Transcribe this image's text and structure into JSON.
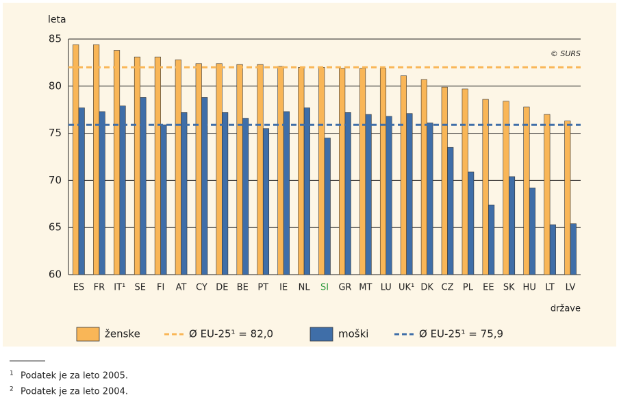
{
  "chart_data": {
    "type": "bar",
    "y_axis_label": "leta",
    "x_axis_label": "države",
    "annotation": "© SURS",
    "categories": [
      "ES",
      "FR",
      "IT¹",
      "SE",
      "FI",
      "AT",
      "CY",
      "DE",
      "BE",
      "PT",
      "IE",
      "NL",
      "SI",
      "GR",
      "MT",
      "LU",
      "UK¹",
      "DK",
      "CZ",
      "PL",
      "EE",
      "SK",
      "HU",
      "LT",
      "LV"
    ],
    "highlight": {
      "index": 12,
      "color": "#2e9a3e"
    },
    "series": [
      {
        "name": "ženske",
        "color": "#f9b657",
        "values": [
          84.4,
          84.4,
          83.8,
          83.1,
          83.1,
          82.8,
          82.4,
          82.4,
          82.3,
          82.3,
          82.1,
          82.0,
          82.0,
          81.9,
          81.9,
          81.9,
          81.1,
          80.7,
          79.9,
          79.7,
          78.6,
          78.4,
          77.8,
          77.0,
          76.3
        ]
      },
      {
        "name": "moški",
        "color": "#3f6ea8",
        "values": [
          77.7,
          77.3,
          77.9,
          78.8,
          75.9,
          77.2,
          78.8,
          77.2,
          76.6,
          75.5,
          77.3,
          77.7,
          74.5,
          77.2,
          77.0,
          76.8,
          77.1,
          76.1,
          73.5,
          70.9,
          67.4,
          70.4,
          69.2,
          65.3,
          65.4
        ]
      }
    ],
    "reference_lines": [
      {
        "value": 82.0,
        "label": "Ø EU-25¹ = 82,0",
        "color": "#f9b657"
      },
      {
        "value": 75.9,
        "label": "Ø EU-25¹ = 75,9",
        "color": "#3f6ea8"
      }
    ],
    "ylim": [
      60,
      85
    ],
    "yticks": [
      60,
      65,
      70,
      75,
      80,
      85
    ],
    "grid": true
  },
  "footnotes": [
    {
      "mark": "1",
      "text": "Podatek je za leto 2005."
    },
    {
      "mark": "2",
      "text": "Podatek je za leto 2004."
    }
  ]
}
